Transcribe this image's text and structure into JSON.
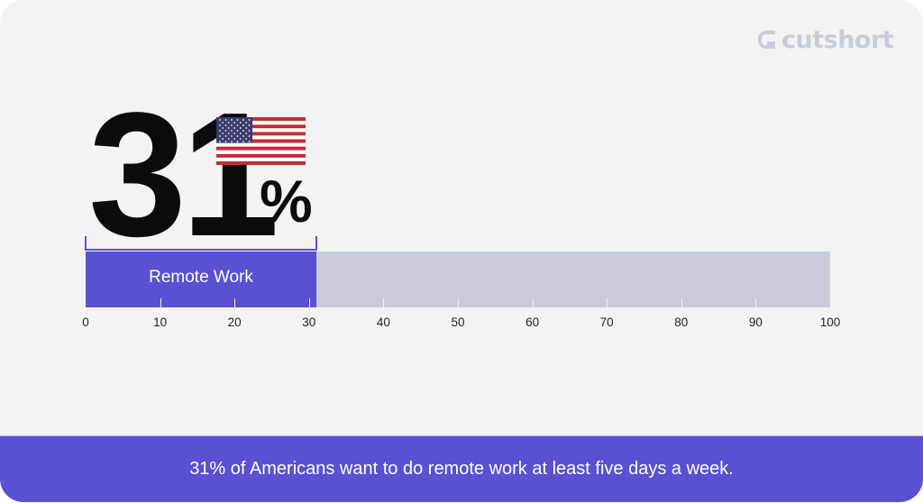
{
  "brand": {
    "name": "cutshort",
    "logo_color": "#c9ccd8",
    "icon": "cutshort-logo-icon"
  },
  "headline": {
    "value": "31",
    "unit": "%",
    "icon": "us-flag-icon"
  },
  "colors": {
    "accent": "#5a50d2",
    "track": "#c9ccd8",
    "background": "#f3f3f3",
    "text": "#0b0b0b"
  },
  "chart_data": {
    "type": "bar",
    "orientation": "horizontal",
    "categories": [
      "Remote Work"
    ],
    "values": [
      31
    ],
    "title": "31%",
    "xlabel": "",
    "ylabel": "",
    "xlim": [
      0,
      100
    ],
    "x_ticks": [
      0,
      10,
      20,
      30,
      40,
      50,
      60,
      70,
      80,
      90,
      100
    ],
    "grid": false,
    "legend": null,
    "annotations": [
      "31% of Americans want to do remote work at least five days a week."
    ]
  },
  "bar": {
    "label": "Remote Work",
    "value": 31,
    "max": 100
  },
  "axis": {
    "ticks": [
      "0",
      "10",
      "20",
      "30",
      "40",
      "50",
      "60",
      "70",
      "80",
      "90",
      "100"
    ]
  },
  "footer": {
    "caption": "31% of Americans want to do remote work at least five days a week."
  }
}
